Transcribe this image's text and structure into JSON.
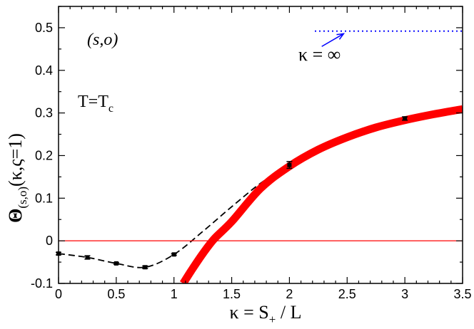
{
  "chart_data": {
    "type": "line",
    "xlabel": "κ = S₊ / L",
    "ylabel": "Θ(s,o)(κ,ς=1)",
    "xlabel_parts": {
      "main": "κ = S",
      "sub": "+",
      "tail": " / L"
    },
    "ylabel_parts": {
      "main": "Θ",
      "sub": "(s,o)",
      "tail": "(κ,ς=1)"
    },
    "xlim": [
      0,
      3.5
    ],
    "ylim": [
      -0.1,
      0.55
    ],
    "xticks": [
      0,
      0.5,
      1,
      1.5,
      2,
      2.5,
      3,
      3.5
    ],
    "xtick_labels": [
      "0",
      "0.5",
      "1",
      "1.5",
      "2",
      "2.5",
      "3",
      "3.5"
    ],
    "yticks": [
      -0.1,
      0,
      0.1,
      0.2,
      0.3,
      0.4,
      0.5
    ],
    "ytick_labels": [
      "-0.1",
      "0",
      "0.1",
      "0.2",
      "0.3",
      "0.4",
      "0.5"
    ],
    "grid": false,
    "annotations": {
      "bc_label": "(s,o)",
      "temp_label": {
        "main": "T=T",
        "sub": "c"
      },
      "kappa_inf_label": "κ = ∞"
    },
    "series": [
      {
        "kind": "points_with_errorbars",
        "color": "#000000",
        "x": [
          0,
          0.25,
          0.5,
          0.75,
          1.0,
          2.0,
          3.0
        ],
        "y": [
          -0.03,
          -0.039,
          -0.053,
          -0.062,
          -0.032,
          0.178,
          0.287
        ],
        "yerr": [
          0.003,
          0.004,
          0.002,
          0.003,
          0.002,
          0.008,
          0.004
        ]
      },
      {
        "kind": "dashed_interpolation",
        "color": "#000000",
        "x": [
          0,
          0.25,
          0.5,
          0.75,
          1.0,
          1.25,
          1.5,
          1.75,
          2.0,
          2.25,
          2.5,
          2.75,
          3.0
        ],
        "y": [
          -0.03,
          -0.039,
          -0.053,
          -0.062,
          -0.032,
          0.022,
          0.08,
          0.135,
          0.178,
          0.215,
          0.246,
          0.27,
          0.287
        ]
      },
      {
        "kind": "thick_curve",
        "color": "#ff0000",
        "x": [
          1.08,
          1.15,
          1.25,
          1.35,
          1.5,
          1.75,
          2.0,
          2.25,
          2.5,
          2.75,
          3.0,
          3.25,
          3.5
        ],
        "y": [
          -0.1,
          -0.07,
          -0.03,
          0.005,
          0.045,
          0.123,
          0.175,
          0.214,
          0.243,
          0.266,
          0.283,
          0.297,
          0.309
        ]
      },
      {
        "kind": "horizontal_line",
        "color": "#ff0000",
        "y": 0
      },
      {
        "kind": "dotted_asymptote",
        "color": "#0000ff",
        "x": [
          2.22,
          3.5
        ],
        "y": [
          0.492,
          0.492
        ]
      }
    ],
    "arrow": {
      "color": "#0000ff",
      "from": [
        2.28,
        0.456
      ],
      "to": [
        2.47,
        0.486
      ]
    }
  }
}
